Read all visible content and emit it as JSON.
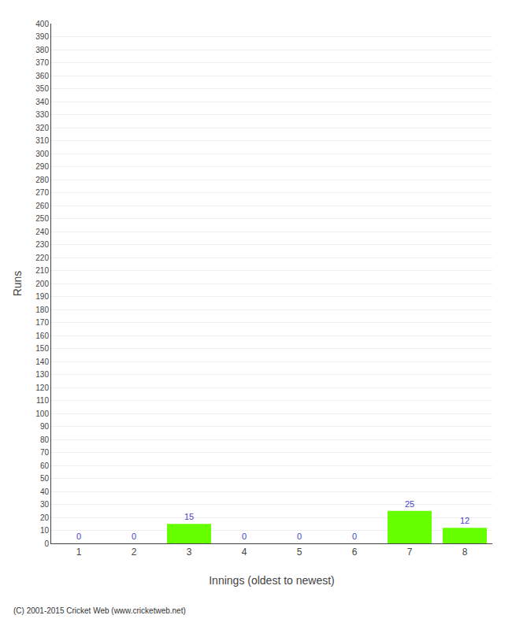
{
  "chart_data": {
    "type": "bar",
    "xlabel": "Innings (oldest to newest)",
    "ylabel": "Runs",
    "categories": [
      "1",
      "2",
      "3",
      "4",
      "5",
      "6",
      "7",
      "8"
    ],
    "values": [
      0,
      0,
      15,
      0,
      0,
      0,
      25,
      12
    ],
    "color": "#66ff00",
    "ylim": [
      0,
      400
    ],
    "yticks": [
      0,
      10,
      20,
      30,
      40,
      50,
      60,
      70,
      80,
      90,
      100,
      110,
      120,
      130,
      140,
      150,
      160,
      170,
      180,
      190,
      200,
      210,
      220,
      230,
      240,
      250,
      260,
      270,
      280,
      290,
      300,
      310,
      320,
      330,
      340,
      350,
      360,
      370,
      380,
      390,
      400
    ],
    "grid": true,
    "data_labels": true,
    "annotations": [
      "(C) 2001-2015 Cricket Web (www.cricketweb.net)"
    ]
  }
}
